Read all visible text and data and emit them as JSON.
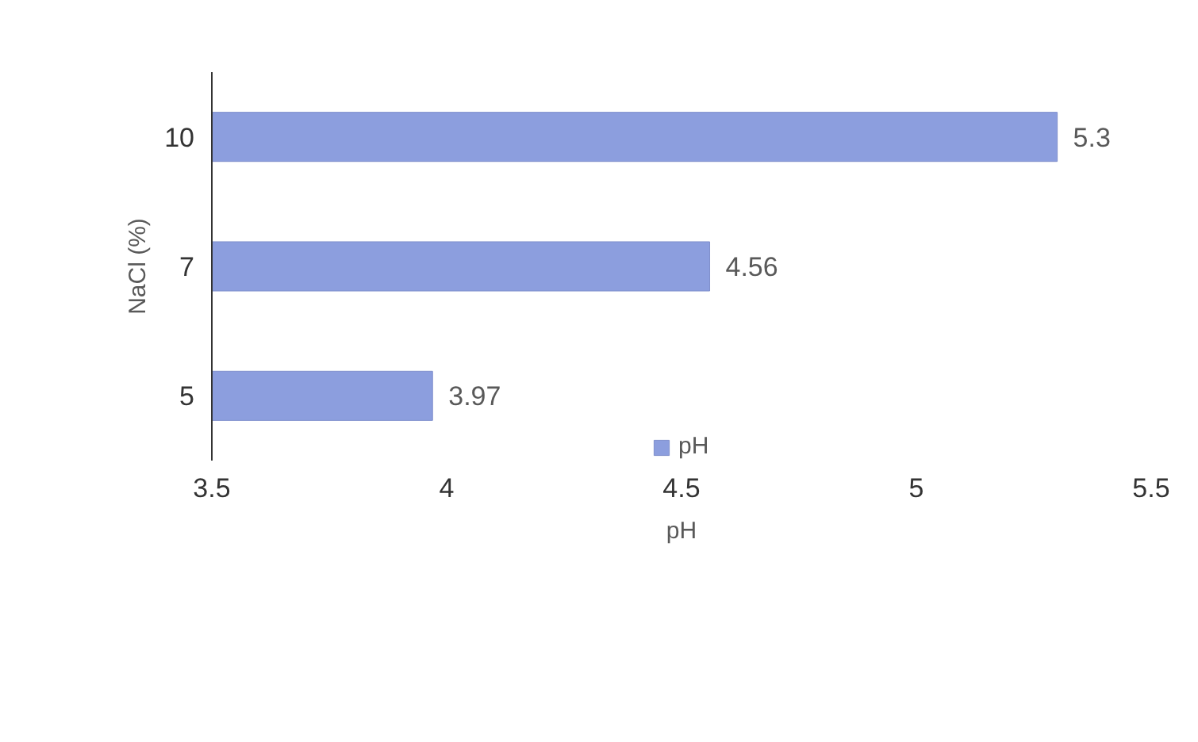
{
  "chart_data": {
    "type": "bar",
    "orientation": "horizontal",
    "xlabel": "pH",
    "ylabel": "NaCl (%)",
    "categories": [
      "10",
      "7",
      "5"
    ],
    "series": [
      {
        "name": "pH",
        "color": "#8c9ede",
        "values": [
          5.3,
          4.56,
          3.97
        ]
      }
    ],
    "xlim": [
      3.5,
      5.5
    ],
    "xticks": [
      3.5,
      4,
      4.5,
      5,
      5.5
    ],
    "data_labels": true,
    "grid": false,
    "legend": "bottom"
  }
}
